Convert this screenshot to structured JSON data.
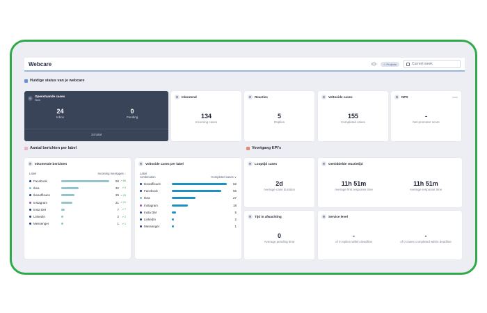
{
  "header": {
    "title": "Webcare",
    "pill": "☆ Projects",
    "date_placeholder": "Current week"
  },
  "section_status": "Huidige status van je webcare",
  "section_messages": "Aantal berichten per label",
  "section_kpis": "Voortgang KPI's",
  "open_cases": {
    "title": "Openstaande cases",
    "subtitle": "Now",
    "inbox_value": "24",
    "inbox_label": "Inbox",
    "pending_value": "0",
    "pending_label": "Pending",
    "total": "24 total"
  },
  "incoming": {
    "title": "Inkomend",
    "value": "134",
    "label": "Incoming cases"
  },
  "replies": {
    "title": "Reacties",
    "value": "5",
    "label": "Replies"
  },
  "completed": {
    "title": "Voltooide cases",
    "value": "155",
    "label": "Completed cases"
  },
  "nps": {
    "title": "NPS",
    "value": "-",
    "label": "Net promoter score"
  },
  "incoming_messages": {
    "title": "Inkomende berichten",
    "col_label": "Label",
    "col_value": "Incoming messages ↓",
    "rows": [
      {
        "label": "Facebook",
        "value": 90,
        "trend": "↗ 66",
        "color": "#1f3a8a"
      },
      {
        "label": "Ikea",
        "value": 32,
        "trend": "↗ 0",
        "color": "#6ec1c9"
      },
      {
        "label": "Ikeaoffisues",
        "value": 25,
        "trend": "↗ 25",
        "color": "#1f3a8a"
      },
      {
        "label": "Instagram",
        "value": 21,
        "trend": "↗ 21",
        "color": "#9b4fc0"
      },
      {
        "label": "Insta DM",
        "value": 7,
        "trend": "↗ 7",
        "color": "#1f3a8a"
      },
      {
        "label": "LinkedIn",
        "value": 2,
        "trend": "↗ 2",
        "color": "#1f3a8a"
      },
      {
        "label": "Messenger",
        "value": 1,
        "trend": "↗ 1",
        "color": "#1f3a8a"
      }
    ]
  },
  "completed_by_label": {
    "title": "Voltooide cases per label",
    "col_label": "Label",
    "col_sub": "combination",
    "col_value": "Completed cases ∨",
    "rows": [
      {
        "label": "Ikeaoffisues",
        "value": 62,
        "color": "#1f3a8a"
      },
      {
        "label": "Facebook",
        "value": 56,
        "color": "#1f3a8a"
      },
      {
        "label": "Ikea",
        "value": 27,
        "color": "#6ec1c9"
      },
      {
        "label": "Instagram",
        "value": 18,
        "color": "#9b4fc0"
      },
      {
        "label": "Insta DM",
        "value": 5,
        "color": "#1f3a8a"
      },
      {
        "label": "LinkedIn",
        "value": 2,
        "color": "#1f3a8a"
      },
      {
        "label": "Messenger",
        "value": 1,
        "color": "#1f3a8a"
      }
    ]
  },
  "lead_time": {
    "title": "Looptijd cases",
    "value": "2d",
    "label": "Average case duration"
  },
  "avg_response": {
    "title": "Gemiddelde reactietijd",
    "value1": "11h 51m",
    "label1": "Average first response time",
    "value2": "11h 51m",
    "label2": "Average response time"
  },
  "waiting": {
    "title": "Tijd in afwachting",
    "value": "0",
    "label": "Average pending time"
  },
  "service_level": {
    "title": "Service level",
    "value1": "-",
    "label1": "of 0 replies within deadline",
    "value2": "-",
    "label2": "of 0 cases completed within deadline"
  },
  "colors": {
    "frame": "#2faa48",
    "dark_card": "#3a4459",
    "bar_incoming": "#93c3cb",
    "bar_completed": "#1f8fbf"
  }
}
